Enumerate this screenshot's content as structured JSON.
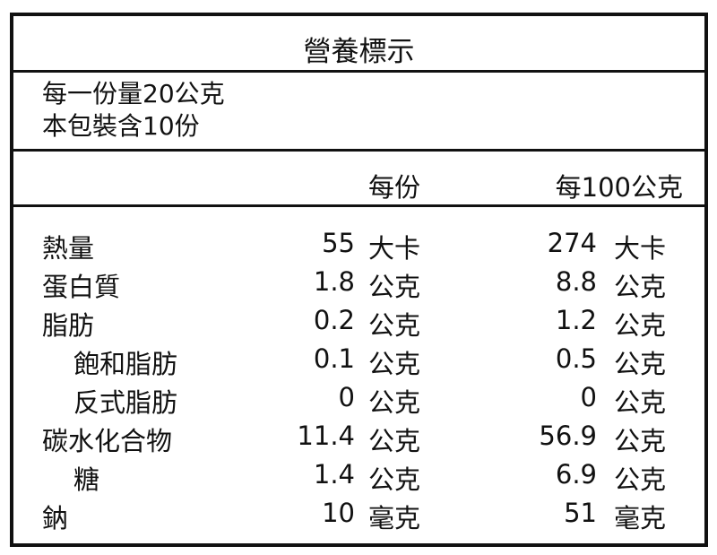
{
  "title": "營養標示",
  "serving": {
    "size": "每一份量20公克",
    "servings": "本包裝含10份"
  },
  "headers": {
    "per_serving": "每份",
    "per_100g": "每100公克"
  },
  "rows": [
    {
      "name": "熱量",
      "v1": "55",
      "u1": "大卡",
      "v2": "274",
      "u2": "大卡",
      "sub": false
    },
    {
      "name": "蛋白質",
      "v1": "1.8",
      "u1": "公克",
      "v2": "8.8",
      "u2": "公克",
      "sub": false
    },
    {
      "name": "脂肪",
      "v1": "0.2",
      "u1": "公克",
      "v2": "1.2",
      "u2": "公克",
      "sub": false
    },
    {
      "name": "飽和脂肪",
      "v1": "0.1",
      "u1": "公克",
      "v2": "0.5",
      "u2": "公克",
      "sub": true
    },
    {
      "name": "反式脂肪",
      "v1": "0",
      "u1": "公克",
      "v2": "0",
      "u2": "公克",
      "sub": true
    },
    {
      "name": "碳水化合物",
      "v1": "11.4",
      "u1": "公克",
      "v2": "56.9",
      "u2": "公克",
      "sub": false
    },
    {
      "name": "糖",
      "v1": "1.4",
      "u1": "公克",
      "v2": "6.9",
      "u2": "公克",
      "sub": true
    },
    {
      "name": "鈉",
      "v1": "10",
      "u1": "毫克",
      "v2": "51",
      "u2": "毫克",
      "sub": false
    }
  ]
}
